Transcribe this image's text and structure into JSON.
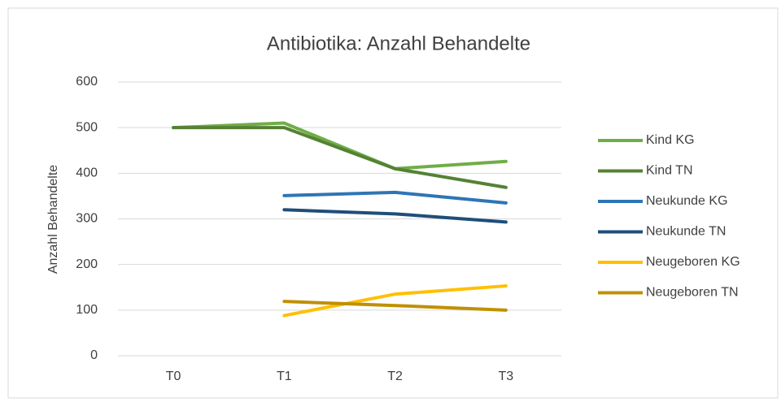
{
  "chart_data": {
    "type": "line",
    "title": "Antibiotika: Anzahl Behandelte",
    "ylabel": "Anzahl Behandelte",
    "categories": [
      "T0",
      "T1",
      "T2",
      "T3"
    ],
    "series": [
      {
        "name": "Kind KG",
        "color": "#70ad47",
        "values": [
          500,
          510,
          410,
          426
        ]
      },
      {
        "name": "Kind TN",
        "color": "#548235",
        "values": [
          500,
          500,
          410,
          369
        ]
      },
      {
        "name": "Neukunde KG",
        "color": "#2e75b6",
        "values": [
          null,
          351,
          358,
          335
        ]
      },
      {
        "name": "Neukunde TN",
        "color": "#1f4e79",
        "values": [
          null,
          320,
          311,
          293
        ]
      },
      {
        "name": "Neugeboren KG",
        "color": "#ffc000",
        "values": [
          null,
          88,
          135,
          153
        ]
      },
      {
        "name": "Neugeboren TN",
        "color": "#bf9000",
        "values": [
          null,
          119,
          110,
          100
        ]
      }
    ],
    "ylim": [
      0,
      600
    ],
    "yticks": [
      0,
      100,
      200,
      300,
      400,
      500,
      600
    ],
    "grid": true,
    "legend": "right"
  }
}
